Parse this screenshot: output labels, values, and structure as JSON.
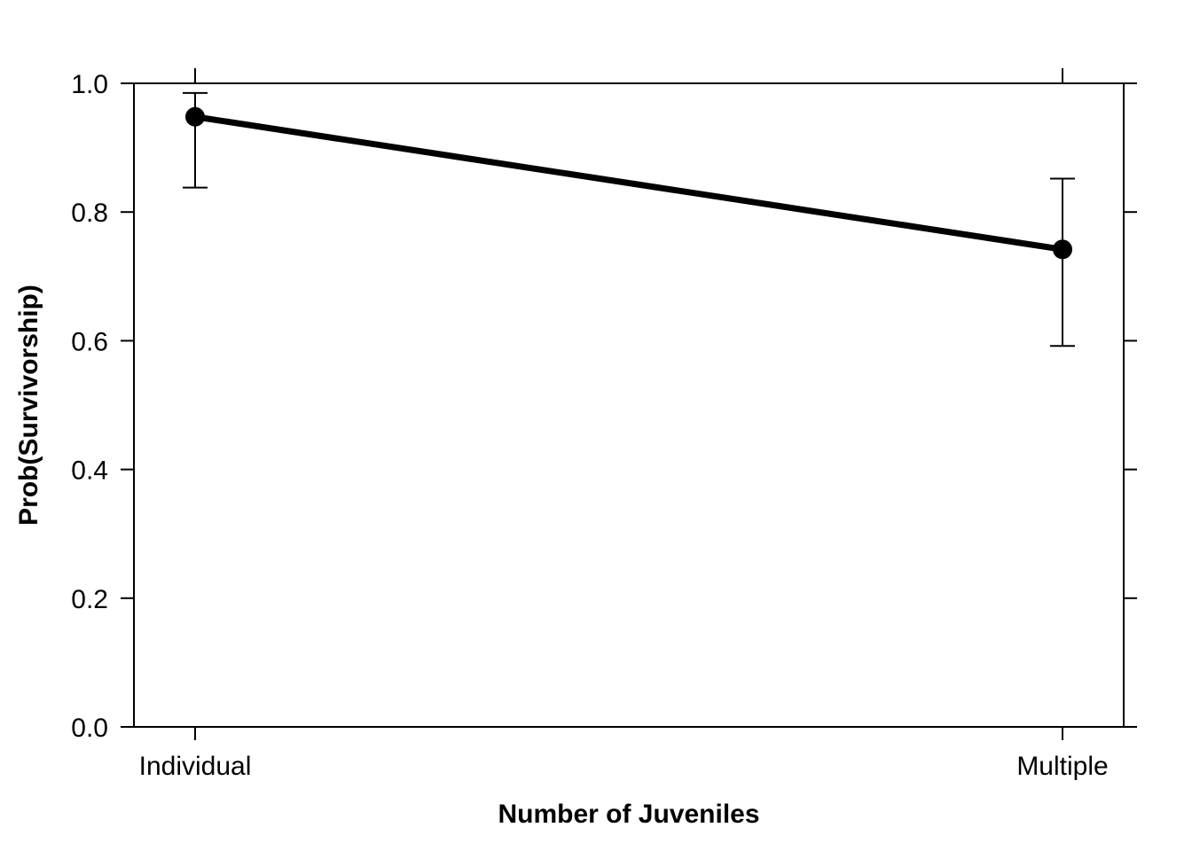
{
  "chart_data": {
    "type": "line",
    "title": "",
    "xlabel": "Number of Juveniles",
    "ylabel": "Prob(Survivorship)",
    "categories": [
      "Individual",
      "Multiple"
    ],
    "series": [
      {
        "values": [
          0.948,
          0.742
        ],
        "error_lower": [
          0.838,
          0.592
        ],
        "error_upper": [
          0.985,
          0.852
        ]
      }
    ],
    "ylim": [
      0.0,
      1.0
    ],
    "yticks": [
      "0.0",
      "0.2",
      "0.4",
      "0.6",
      "0.8",
      "1.0"
    ],
    "grid": false,
    "legend": "none",
    "colors": {
      "line": "#000000",
      "marker": "#000000",
      "axis": "#000000"
    }
  }
}
